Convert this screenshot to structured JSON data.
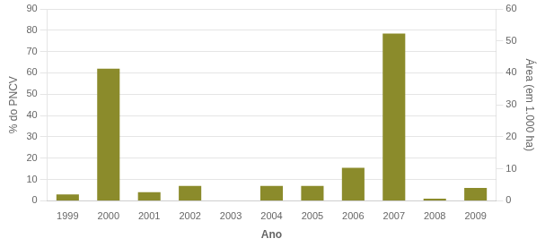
{
  "chart_data": {
    "type": "bar",
    "categories": [
      "1999",
      "2000",
      "2001",
      "2002",
      "2003",
      "2004",
      "2005",
      "2006",
      "2007",
      "2008",
      "2009"
    ],
    "values": [
      3.0,
      62.0,
      4.0,
      7.0,
      0.0,
      7.0,
      7.0,
      15.5,
      78.5,
      1.0,
      6.0
    ],
    "color": "#8B8B2B",
    "xlabel": "Ano",
    "ylabel": "% do PNCV",
    "y2label": "Área (em 1.000 ha)",
    "ylim": [
      0,
      90
    ],
    "yticks": [
      0,
      10,
      20,
      30,
      40,
      50,
      60,
      70,
      80,
      90
    ],
    "y2lim": [
      0,
      60
    ],
    "y2ticks": [
      0,
      10,
      20,
      30,
      40,
      50,
      60
    ],
    "grid": true
  }
}
